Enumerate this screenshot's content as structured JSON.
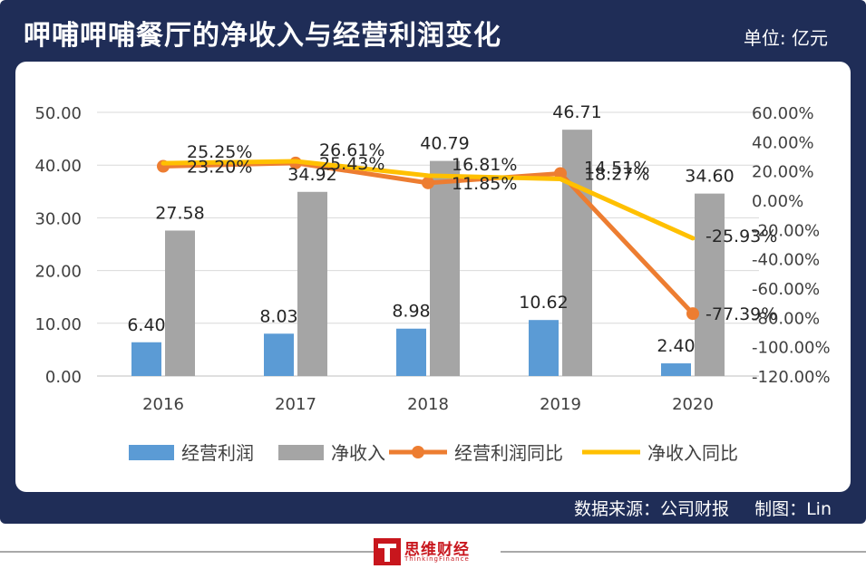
{
  "header": {
    "title": "呷哺呷哺餐厅的净收入与经营利润变化",
    "unit": "单位: 亿元"
  },
  "footer": {
    "source": "数据来源：公司财报",
    "author": "制图：Lin"
  },
  "logo": {
    "name": "思维财经",
    "sub": "ThinkingFinance"
  },
  "colors": {
    "frame": "#1f2d57",
    "operating_profit": "#5b9bd5",
    "net_revenue": "#a5a5a5",
    "operating_profit_yoy": "#ed7d31",
    "net_revenue_yoy": "#ffc000"
  },
  "chart_data": {
    "type": "bar",
    "categories": [
      "2016",
      "2017",
      "2018",
      "2019",
      "2020"
    ],
    "series": [
      {
        "name": "经营利润",
        "type": "bar",
        "axis": "left",
        "values": [
          6.4,
          8.03,
          8.98,
          10.62,
          2.4
        ],
        "labels": [
          "6.40",
          "8.03",
          "8.98",
          "10.62",
          "2.40"
        ]
      },
      {
        "name": "净收入",
        "type": "bar",
        "axis": "left",
        "values": [
          27.58,
          34.92,
          40.79,
          46.71,
          34.6
        ],
        "labels": [
          "27.58",
          "34.92",
          "40.79",
          "46.71",
          "34.60"
        ]
      },
      {
        "name": "经营利润同比",
        "type": "line",
        "axis": "right",
        "values": [
          23.2,
          25.43,
          11.85,
          18.27,
          -77.39
        ],
        "labels": [
          "23.20%",
          "25.43%",
          "11.85%",
          "18.27%",
          "-77.39%"
        ]
      },
      {
        "name": "净收入同比",
        "type": "line",
        "axis": "right",
        "values": [
          25.25,
          26.61,
          16.81,
          14.51,
          -25.93
        ],
        "labels": [
          "25.25%",
          "26.61%",
          "16.81%",
          "14.51%",
          "-25.93%"
        ]
      }
    ],
    "y_left": {
      "min": 0,
      "max": 50,
      "ticks": [
        "0.00",
        "10.00",
        "20.00",
        "30.00",
        "40.00",
        "50.00"
      ]
    },
    "y_right": {
      "min": -120,
      "max": 60,
      "ticks": [
        "-120.00%",
        "-100.00%",
        "-80.00%",
        "-60.00%",
        "-40.00%",
        "-20.00%",
        "0.00%",
        "20.00%",
        "40.00%",
        "60.00%"
      ]
    },
    "grid": true,
    "legend_position": "bottom"
  }
}
